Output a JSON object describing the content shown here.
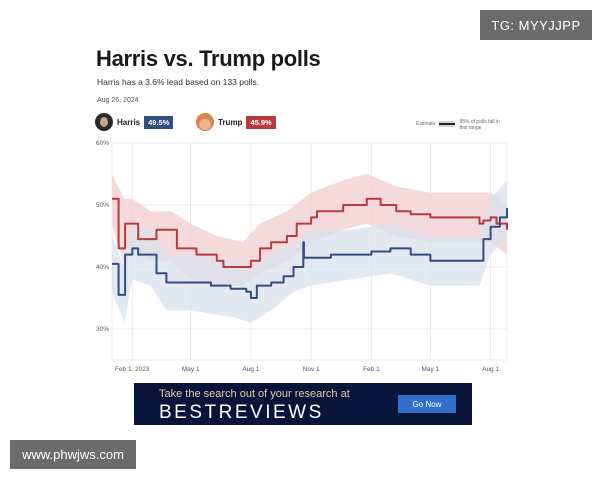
{
  "watermark_top": "TG: MYYJJPP",
  "watermark_bottom": "www.phwjws.com",
  "header": {
    "title": "Harris vs. Trump polls",
    "subtitle": "Harris has a 3.6% lead based on 133 polls.",
    "date": "Aug 26, 2024"
  },
  "candidates": [
    {
      "name": "Harris",
      "value": "49.5%",
      "color": "#334d7e"
    },
    {
      "name": "Trump",
      "value": "45.9%",
      "color": "#b73a3f"
    }
  ],
  "legend": {
    "estimate": "Estimate",
    "range": "95% of polls fall in this range"
  },
  "chart_data": {
    "type": "line",
    "title": "Harris vs. Trump polls",
    "xlabel": "",
    "ylabel": "",
    "ylim": [
      25,
      60
    ],
    "y_ticks": [
      30,
      40,
      50,
      60
    ],
    "y_tick_labels": [
      "30%",
      "40%",
      "50%",
      "60%"
    ],
    "x_ticks": [
      "2023-02-01",
      "2023-05-01",
      "2023-08-01",
      "2023-11-01",
      "2024-02-01",
      "2024-05-01",
      "2024-08-01"
    ],
    "x_tick_labels": [
      "Feb 1, 2023",
      "May 1",
      "Aug 1",
      "Nov 1",
      "Feb 1",
      "May 1",
      "Aug 1"
    ],
    "x_range": [
      "2023-01-01",
      "2024-08-26"
    ],
    "grid": true,
    "series": [
      {
        "name": "Trump",
        "color": "#b73a3f",
        "band_color": "#f2cdd0",
        "points": [
          [
            "2023-01-01",
            51
          ],
          [
            "2023-01-10",
            51
          ],
          [
            "2023-01-11",
            43
          ],
          [
            "2023-01-20",
            43
          ],
          [
            "2023-01-21",
            47
          ],
          [
            "2023-02-01",
            47
          ],
          [
            "2023-02-10",
            44.5
          ],
          [
            "2023-03-01",
            44.5
          ],
          [
            "2023-03-10",
            46
          ],
          [
            "2023-04-01",
            46
          ],
          [
            "2023-04-10",
            43
          ],
          [
            "2023-05-01",
            43
          ],
          [
            "2023-05-10",
            42
          ],
          [
            "2023-06-10",
            41
          ],
          [
            "2023-06-20",
            40
          ],
          [
            "2023-07-20",
            40
          ],
          [
            "2023-08-01",
            41
          ],
          [
            "2023-08-15",
            43
          ],
          [
            "2023-09-01",
            44
          ],
          [
            "2023-09-25",
            45
          ],
          [
            "2023-10-10",
            47
          ],
          [
            "2023-11-01",
            48
          ],
          [
            "2023-11-10",
            49
          ],
          [
            "2023-12-01",
            49
          ],
          [
            "2023-12-20",
            50
          ],
          [
            "2024-01-10",
            50
          ],
          [
            "2024-01-25",
            51
          ],
          [
            "2024-02-15",
            50
          ],
          [
            "2024-03-10",
            49
          ],
          [
            "2024-04-01",
            48.5
          ],
          [
            "2024-05-01",
            48
          ],
          [
            "2024-06-01",
            48
          ],
          [
            "2024-07-01",
            48
          ],
          [
            "2024-07-15",
            47
          ],
          [
            "2024-07-21",
            47.5
          ],
          [
            "2024-08-01",
            48
          ],
          [
            "2024-08-10",
            47
          ],
          [
            "2024-08-26",
            46
          ]
        ],
        "band": [
          [
            "2023-01-01",
            47,
            55
          ],
          [
            "2023-01-20",
            40,
            51
          ],
          [
            "2023-02-01",
            43,
            51
          ],
          [
            "2023-03-01",
            41,
            49
          ],
          [
            "2023-04-01",
            41,
            49
          ],
          [
            "2023-05-01",
            38,
            47
          ],
          [
            "2023-06-10",
            37,
            45
          ],
          [
            "2023-07-20",
            37,
            44
          ],
          [
            "2023-08-15",
            39,
            47
          ],
          [
            "2023-09-25",
            41,
            49
          ],
          [
            "2023-11-01",
            44,
            52
          ],
          [
            "2023-12-20",
            46,
            54
          ],
          [
            "2024-01-25",
            47,
            55
          ],
          [
            "2024-03-10",
            45,
            53
          ],
          [
            "2024-05-01",
            44,
            52
          ],
          [
            "2024-07-01",
            44,
            52
          ],
          [
            "2024-08-01",
            44,
            52
          ],
          [
            "2024-08-26",
            42,
            50
          ]
        ]
      },
      {
        "name": "Harris",
        "color": "#334d7e",
        "band_color": "#d9e1ec",
        "points": [
          [
            "2023-01-01",
            40.5
          ],
          [
            "2023-01-10",
            40.5
          ],
          [
            "2023-01-11",
            35.5
          ],
          [
            "2023-01-20",
            35.5
          ],
          [
            "2023-01-21",
            42
          ],
          [
            "2023-02-01",
            43
          ],
          [
            "2023-02-10",
            42
          ],
          [
            "2023-03-01",
            42
          ],
          [
            "2023-03-10",
            39
          ],
          [
            "2023-03-25",
            37.5
          ],
          [
            "2023-05-01",
            37.5
          ],
          [
            "2023-06-01",
            37
          ],
          [
            "2023-07-01",
            36.5
          ],
          [
            "2023-07-25",
            36
          ],
          [
            "2023-08-01",
            35
          ],
          [
            "2023-08-10",
            37
          ],
          [
            "2023-09-01",
            37.5
          ],
          [
            "2023-09-20",
            38.5
          ],
          [
            "2023-10-05",
            40
          ],
          [
            "2023-10-20",
            44
          ],
          [
            "2023-10-21",
            41.5
          ],
          [
            "2023-11-01",
            41.5
          ],
          [
            "2023-12-01",
            42
          ],
          [
            "2024-01-01",
            42
          ],
          [
            "2024-02-01",
            42.5
          ],
          [
            "2024-03-01",
            43
          ],
          [
            "2024-04-01",
            42
          ],
          [
            "2024-05-01",
            41
          ],
          [
            "2024-06-01",
            41
          ],
          [
            "2024-07-01",
            41
          ],
          [
            "2024-07-15",
            41
          ],
          [
            "2024-07-21",
            44.5
          ],
          [
            "2024-08-01",
            46.5
          ],
          [
            "2024-08-15",
            48
          ],
          [
            "2024-08-26",
            49.5
          ]
        ],
        "band": [
          [
            "2023-01-01",
            36,
            45
          ],
          [
            "2023-01-20",
            31,
            40
          ],
          [
            "2023-02-01",
            38,
            47
          ],
          [
            "2023-03-01",
            37,
            46
          ],
          [
            "2023-03-25",
            33,
            42
          ],
          [
            "2023-05-01",
            33,
            42
          ],
          [
            "2023-07-01",
            32,
            41
          ],
          [
            "2023-08-01",
            31,
            40
          ],
          [
            "2023-09-01",
            33,
            42
          ],
          [
            "2023-10-05",
            36,
            44
          ],
          [
            "2023-11-01",
            37,
            46
          ],
          [
            "2024-01-01",
            38,
            46
          ],
          [
            "2024-03-01",
            39,
            47
          ],
          [
            "2024-05-01",
            37,
            45
          ],
          [
            "2024-07-15",
            37,
            45
          ],
          [
            "2024-08-01",
            42,
            51
          ],
          [
            "2024-08-26",
            45,
            54
          ]
        ]
      }
    ]
  },
  "ad": {
    "line1": "Take the search out of your research at",
    "brand": "BESTREVIEWS",
    "button": "Go Now"
  }
}
